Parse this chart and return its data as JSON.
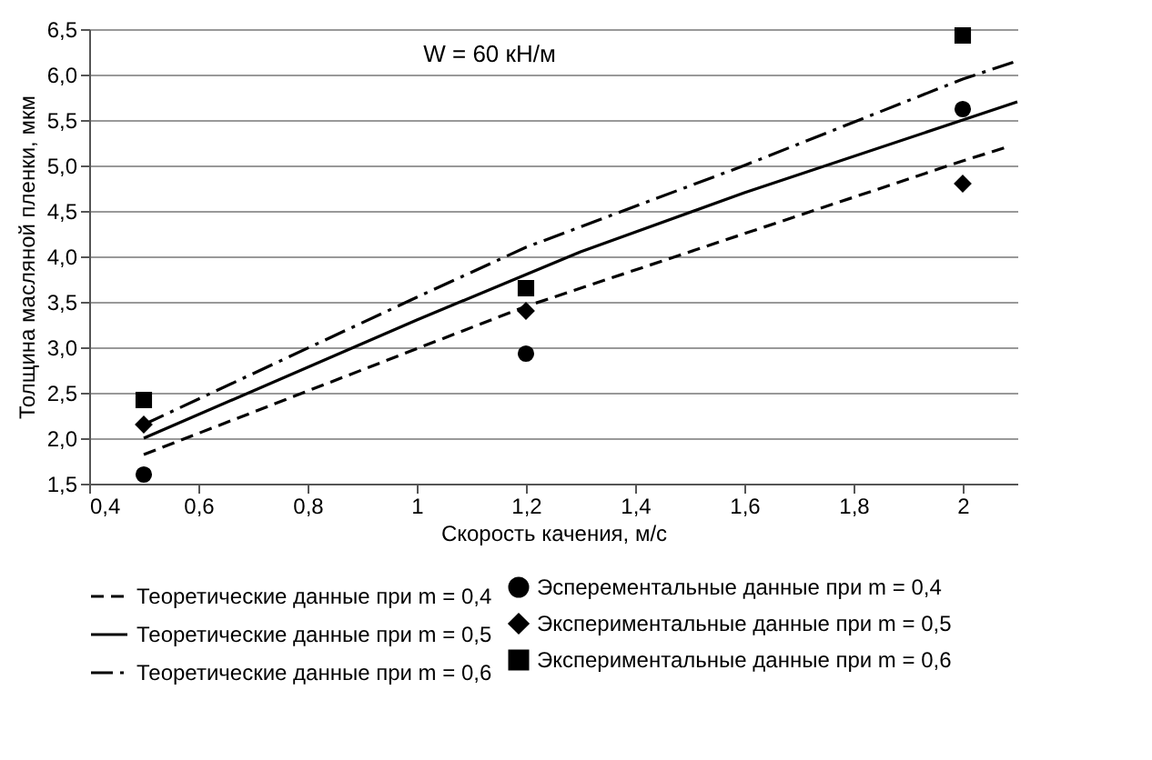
{
  "chart_data": {
    "type": "line",
    "xlabel": "Скорость качения, м/с",
    "ylabel": "Толщина масляной пленки, мкм",
    "annotations": [
      "W = 60 кН/м"
    ],
    "xlim": [
      0.4,
      2.1
    ],
    "xticks": [
      {
        "value": 0.4,
        "label": "0,4"
      },
      {
        "value": 0.6,
        "label": "0,6"
      },
      {
        "value": 0.8,
        "label": "0,8"
      },
      1,
      {
        "value": 1.2,
        "label": "1,2"
      },
      {
        "value": 1.4,
        "label": "1,4"
      },
      {
        "value": 1.6,
        "label": "1,6"
      },
      {
        "value": 1.8,
        "label": "1,8"
      },
      2
    ],
    "ylim": [
      1.5,
      6.5
    ],
    "yticks": [
      {
        "value": 1.5,
        "label": "1,5"
      },
      {
        "value": 2,
        "label": "2,0"
      },
      {
        "value": 2.5,
        "label": "2,5"
      },
      {
        "value": 3,
        "label": "3,0"
      },
      {
        "value": 3.5,
        "label": "3,5"
      },
      {
        "value": 4,
        "label": "4,0"
      },
      {
        "value": 4.5,
        "label": "4,5"
      },
      {
        "value": 5,
        "label": "5,0"
      },
      {
        "value": 5.5,
        "label": "5,5"
      },
      {
        "value": 6,
        "label": "6,0"
      },
      {
        "value": 6.5,
        "label": "6,5"
      }
    ],
    "grid": "y",
    "legend": "bottom",
    "series": [
      {
        "name": "Теоретические данные при m = 0,4",
        "type": "line",
        "line_style": "dashed",
        "color": "#000000",
        "x": [
          0.5,
          1.2,
          2.0,
          2.08
        ],
        "values": [
          1.82,
          3.45,
          5.05,
          5.2
        ]
      },
      {
        "name": "Теоретические данные при m = 0,5",
        "type": "line",
        "line_style": "solid",
        "color": "#000000",
        "x": [
          0.5,
          1.0,
          1.2,
          1.3,
          1.6,
          2.0,
          2.1
        ],
        "values": [
          2.0,
          3.3,
          3.8,
          4.05,
          4.7,
          5.5,
          5.7
        ]
      },
      {
        "name": "Теоретические данные при m = 0,6",
        "type": "line",
        "line_style": "dashdot",
        "color": "#000000",
        "x": [
          0.5,
          1.0,
          1.2,
          1.6,
          2.0,
          2.1
        ],
        "values": [
          2.15,
          3.55,
          4.1,
          5.0,
          5.95,
          6.15
        ]
      },
      {
        "name": "Эсперементальные данные при m = 0,4",
        "type": "scatter",
        "marker": "circle",
        "color": "#000000",
        "x": [
          0.5,
          1.2,
          2.0
        ],
        "values": [
          1.6,
          2.93,
          5.62
        ]
      },
      {
        "name": "Экспериментальные данные при m = 0,5",
        "type": "scatter",
        "marker": "diamond",
        "color": "#000000",
        "x": [
          0.5,
          1.2,
          2.0
        ],
        "values": [
          2.15,
          3.4,
          4.8
        ]
      },
      {
        "name": "Экспериментальные данные при m = 0,6",
        "type": "scatter",
        "marker": "square",
        "color": "#000000",
        "x": [
          0.5,
          1.2,
          2.0
        ],
        "values": [
          2.42,
          3.65,
          6.43
        ]
      }
    ]
  }
}
